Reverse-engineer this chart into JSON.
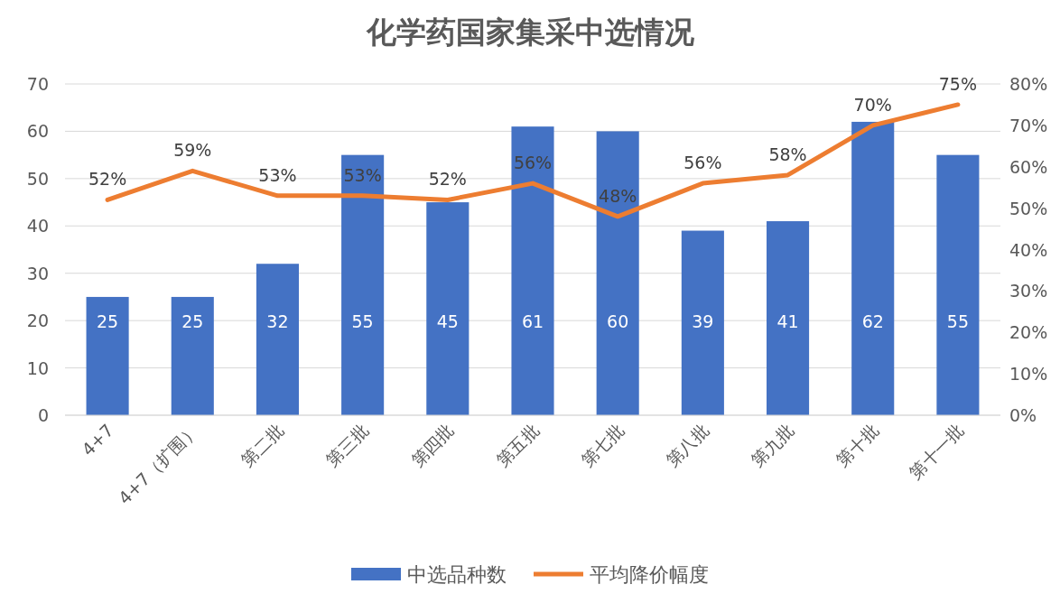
{
  "chart_data": {
    "type": "bar",
    "title": "化学药国家集采中选情况",
    "categories": [
      "4+7",
      "4+7（扩围）",
      "第二批",
      "第三批",
      "第四批",
      "第五批",
      "第七批",
      "第八批",
      "第九批",
      "第十批",
      "第十一批"
    ],
    "series": [
      {
        "name": "中选品种数",
        "color": "#4472c4",
        "values": [
          25,
          25,
          32,
          55,
          45,
          61,
          60,
          39,
          41,
          62,
          55
        ]
      },
      {
        "name": "平均降价幅度",
        "type": "line",
        "axis": "y2",
        "color": "#ed7d31",
        "values": [
          52,
          59,
          53,
          53,
          52,
          56,
          48,
          56,
          58,
          70,
          75
        ],
        "value_labels": [
          "52%",
          "59%",
          "53%",
          "53%",
          "52%",
          "56%",
          "48%",
          "56%",
          "58%",
          "70%",
          "75%"
        ]
      }
    ],
    "ylim": [
      0,
      70
    ],
    "yticks": [
      0,
      10,
      20,
      30,
      40,
      50,
      60,
      70
    ],
    "y2lim": [
      0,
      80
    ],
    "y2ticks": [
      {
        "value": 0,
        "label": "0%"
      },
      {
        "value": 10,
        "label": "10%"
      },
      {
        "value": 20,
        "label": "20%"
      },
      {
        "value": 30,
        "label": "30%"
      },
      {
        "value": 40,
        "label": "40%"
      },
      {
        "value": 50,
        "label": "50%"
      },
      {
        "value": 60,
        "label": "60%"
      },
      {
        "value": 70,
        "label": "70%"
      },
      {
        "value": 80,
        "label": "80%"
      }
    ],
    "grid": "y",
    "legend": "bottom",
    "data_labels": true
  }
}
